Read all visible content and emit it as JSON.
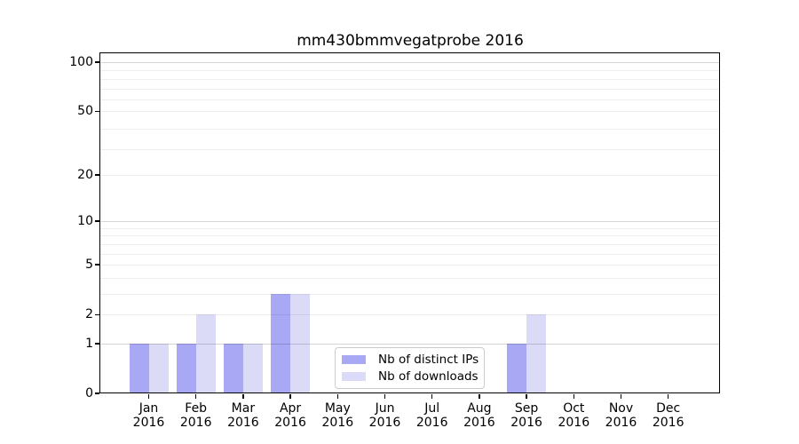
{
  "chart_data": {
    "type": "bar",
    "title": "mm430bmmvegatprobe 2016",
    "categories": [
      "Jan",
      "Feb",
      "Mar",
      "Apr",
      "May",
      "Jun",
      "Jul",
      "Aug",
      "Sep",
      "Oct",
      "Nov",
      "Dec"
    ],
    "year_label": "2016",
    "series": [
      {
        "name": "Nb of distinct IPs",
        "color": "#a8a8f4",
        "values": [
          1,
          1,
          1,
          3,
          0,
          0,
          0,
          0,
          1,
          0,
          0,
          0
        ]
      },
      {
        "name": "Nb of downloads",
        "color": "#dbdbf8",
        "values": [
          1,
          2,
          1,
          3,
          0,
          0,
          0,
          0,
          2,
          0,
          0,
          0
        ]
      }
    ],
    "y_axis": {
      "ticks": [
        0,
        1,
        2,
        5,
        10,
        20,
        50,
        100
      ],
      "scale": "log10(1+value)",
      "ylim": [
        0,
        113
      ]
    },
    "x_axis": {
      "label_format": "month over year"
    },
    "grid": {
      "horizontal": true,
      "strong_at": [
        1,
        10,
        100
      ],
      "over_bars": true
    },
    "legend": {
      "position": "lower center",
      "entries": [
        "Nb of distinct IPs",
        "Nb of downloads"
      ]
    }
  },
  "colors": {
    "background": "#ffffff",
    "axis": "#000000",
    "legend_border": "#cbcbcb",
    "series_distinct_ips": "#a8a8f4",
    "series_downloads": "#dbdbf8"
  }
}
